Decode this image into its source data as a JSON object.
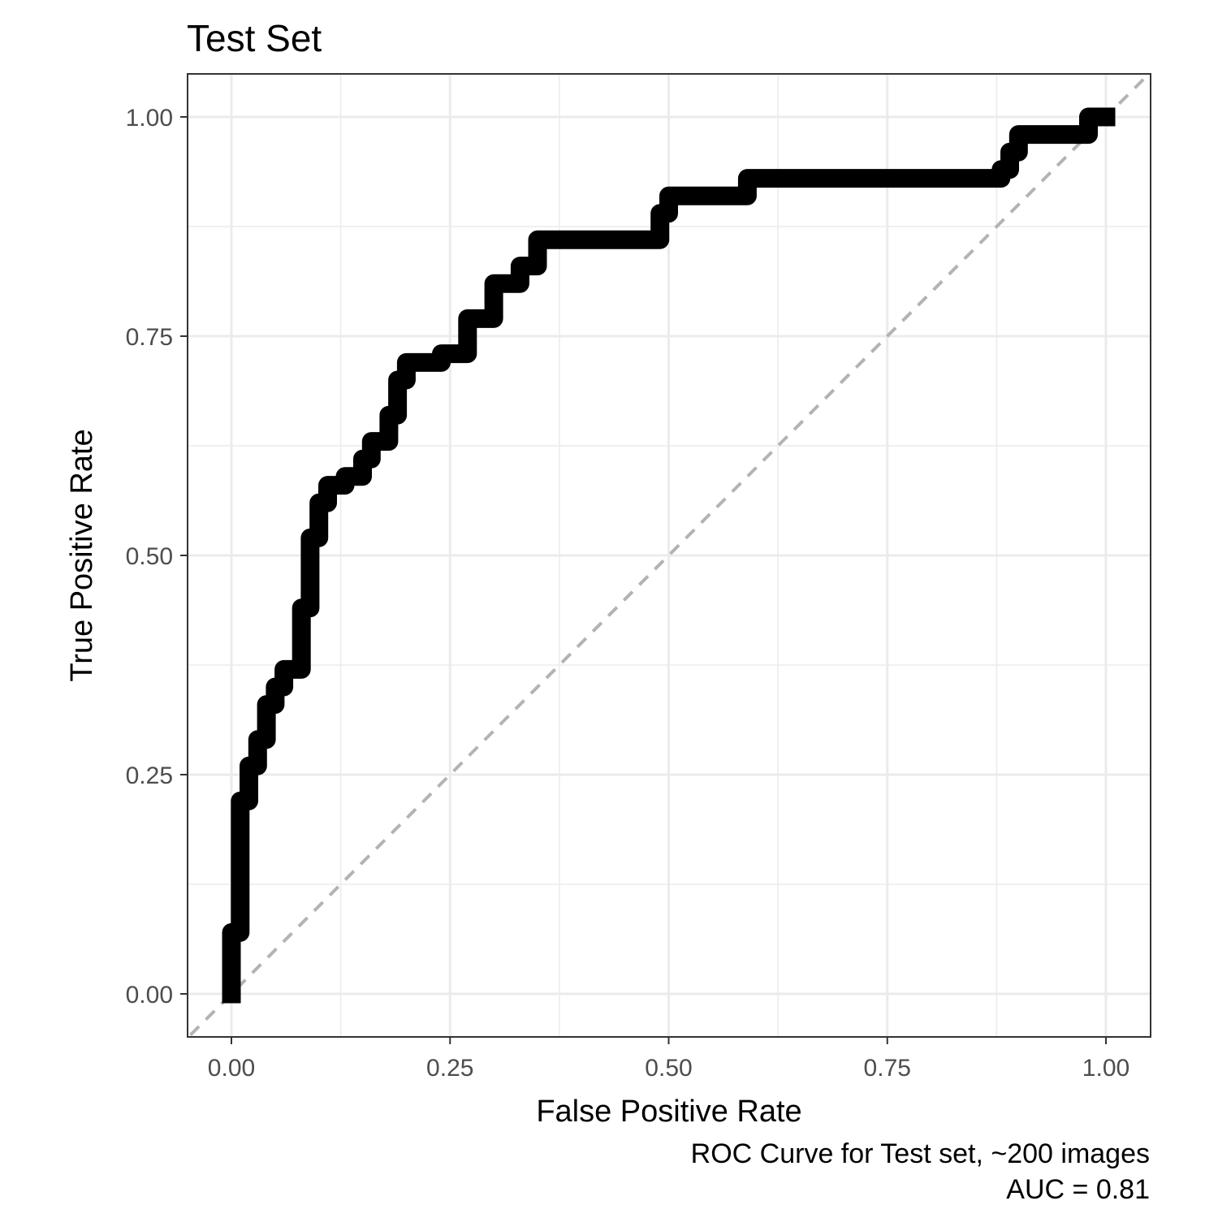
{
  "chart_data": {
    "type": "line",
    "title": "Test Set",
    "xlabel": "False Positive Rate",
    "ylabel": "True Positive Rate",
    "caption": [
      "ROC Curve for Test set, ~200 images",
      "AUC = 0.81"
    ],
    "xlim": [
      -0.1,
      1.1
    ],
    "ylim": [
      -0.04,
      1.04
    ],
    "x_ticks": [
      0.0,
      0.25,
      0.5,
      0.75,
      1.0
    ],
    "x_tick_labels": [
      "0.00",
      "0.25",
      "0.50",
      "0.75",
      "1.00"
    ],
    "y_ticks": [
      0.0,
      0.25,
      0.5,
      0.75,
      1.0
    ],
    "y_tick_labels": [
      "0.00",
      "0.25",
      "0.50",
      "0.75",
      "1.00"
    ],
    "grid": true,
    "legend": "none",
    "colors": {
      "curve": "#000000",
      "diagonal": "#b3b3b3",
      "grid": "#ebebeb",
      "panel_border": "#333333"
    },
    "series": [
      {
        "x": [
          0.0,
          0.0,
          0.01,
          0.01,
          0.02,
          0.02,
          0.03,
          0.03,
          0.04,
          0.04,
          0.05,
          0.05,
          0.06,
          0.06,
          0.08,
          0.08,
          0.09,
          0.09,
          0.1,
          0.1,
          0.11,
          0.11,
          0.13,
          0.13,
          0.15,
          0.15,
          0.16,
          0.16,
          0.18,
          0.18,
          0.19,
          0.19,
          0.2,
          0.2,
          0.24,
          0.24,
          0.27,
          0.27,
          0.3,
          0.3,
          0.33,
          0.33,
          0.35,
          0.35,
          0.49,
          0.49,
          0.5,
          0.5,
          0.59,
          0.59,
          0.88,
          0.88,
          0.89,
          0.89,
          0.9,
          0.9,
          0.98,
          0.98,
          1.0
        ],
        "y": [
          0.0,
          0.07,
          0.07,
          0.22,
          0.22,
          0.26,
          0.26,
          0.29,
          0.29,
          0.33,
          0.33,
          0.35,
          0.35,
          0.37,
          0.37,
          0.44,
          0.44,
          0.52,
          0.52,
          0.56,
          0.56,
          0.58,
          0.58,
          0.59,
          0.59,
          0.61,
          0.61,
          0.63,
          0.63,
          0.66,
          0.66,
          0.7,
          0.7,
          0.72,
          0.72,
          0.73,
          0.73,
          0.77,
          0.77,
          0.81,
          0.81,
          0.83,
          0.83,
          0.86,
          0.86,
          0.89,
          0.89,
          0.91,
          0.91,
          0.93,
          0.93,
          0.94,
          0.94,
          0.96,
          0.96,
          0.98,
          0.98,
          1.0,
          1.0
        ]
      },
      {
        "x": [
          -0.1,
          1.1
        ],
        "y": [
          -0.1,
          1.1
        ]
      }
    ]
  }
}
